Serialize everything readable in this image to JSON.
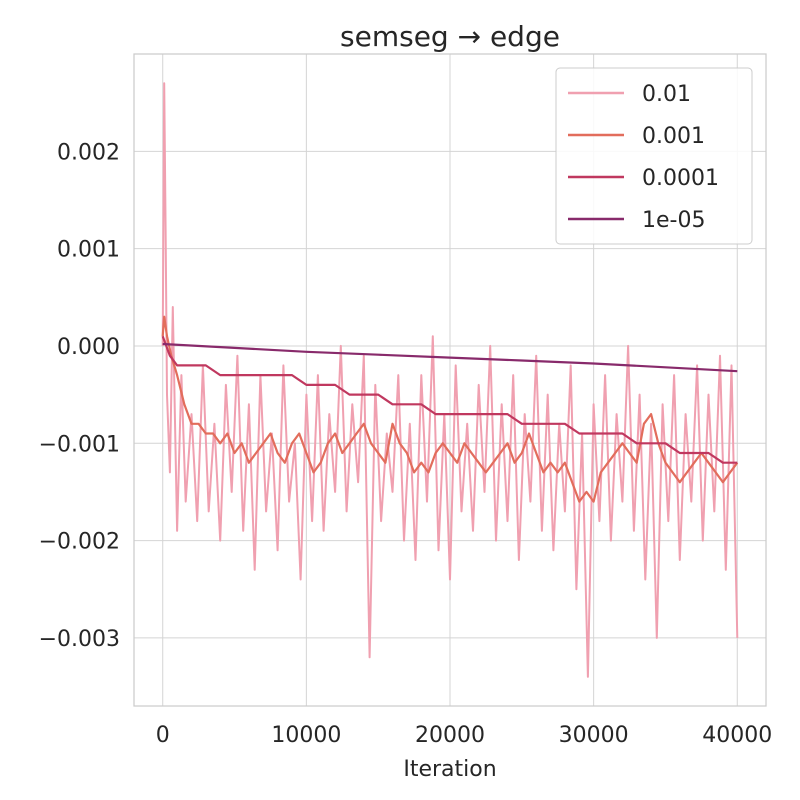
{
  "chart_data": {
    "type": "line",
    "title": "semseg → edge",
    "xlabel": "Iteration",
    "ylabel": "",
    "xlim": [
      -2000,
      42000
    ],
    "ylim": [
      -0.0037,
      0.003
    ],
    "xticks": [
      0,
      10000,
      20000,
      30000,
      40000
    ],
    "xtick_labels": [
      "0",
      "10000",
      "20000",
      "30000",
      "40000"
    ],
    "yticks": [
      0.002,
      0.001,
      0.0,
      -0.001,
      -0.002,
      -0.003
    ],
    "ytick_labels": [
      "0.002",
      "0.001",
      "0.000",
      "−0.001",
      "−0.002",
      "−0.003"
    ],
    "grid": true,
    "legend_position": "top-right",
    "series": [
      {
        "name": "0.01",
        "color": "#f0a0b0",
        "x": [
          0,
          100,
          200,
          300,
          500,
          700,
          1000,
          1300,
          1600,
          2000,
          2400,
          2800,
          3200,
          3600,
          4000,
          4400,
          4800,
          5200,
          5600,
          6000,
          6400,
          6800,
          7200,
          7600,
          8000,
          8400,
          8800,
          9200,
          9600,
          10000,
          10400,
          10800,
          11200,
          11600,
          12000,
          12400,
          12800,
          13200,
          13600,
          14000,
          14400,
          14800,
          15200,
          15600,
          16000,
          16400,
          16800,
          17200,
          17600,
          18000,
          18400,
          18800,
          19200,
          19600,
          20000,
          20400,
          20800,
          21200,
          21600,
          22000,
          22400,
          22800,
          23200,
          23600,
          24000,
          24400,
          24800,
          25200,
          25600,
          26000,
          26400,
          26800,
          27200,
          27600,
          28000,
          28400,
          28800,
          29200,
          29600,
          30000,
          30400,
          30800,
          31200,
          31600,
          32000,
          32400,
          32800,
          33200,
          33600,
          34000,
          34400,
          34800,
          35200,
          35600,
          36000,
          36400,
          36800,
          37200,
          37600,
          38000,
          38400,
          38800,
          39200,
          39600,
          40000
        ],
        "y": [
          0.0,
          0.0027,
          0.0012,
          -0.0005,
          -0.0013,
          0.0004,
          -0.0019,
          -0.0003,
          -0.0016,
          -0.0007,
          -0.0018,
          -0.0002,
          -0.0017,
          -0.0008,
          -0.002,
          -0.0004,
          -0.0015,
          -0.0001,
          -0.0019,
          -0.0006,
          -0.0023,
          -0.0003,
          -0.0017,
          -0.0009,
          -0.0021,
          -0.0002,
          -0.0016,
          -0.001,
          -0.0024,
          -0.0005,
          -0.0018,
          -0.0003,
          -0.0019,
          -0.0007,
          -0.0015,
          0.0,
          -0.0017,
          -0.0006,
          -0.0014,
          -0.0001,
          -0.0032,
          -0.0004,
          -0.0018,
          -0.0009,
          -0.0015,
          -0.0003,
          -0.002,
          -0.0008,
          -0.0022,
          -0.0003,
          -0.0016,
          0.0001,
          -0.0021,
          -0.0007,
          -0.0024,
          -0.0002,
          -0.0017,
          -0.0008,
          -0.0019,
          -0.0004,
          -0.0015,
          0.0,
          -0.002,
          -0.0006,
          -0.0018,
          -0.0003,
          -0.0022,
          -0.0007,
          -0.0016,
          -0.0001,
          -0.0019,
          -0.0005,
          -0.0021,
          -0.0008,
          -0.0017,
          -0.0002,
          -0.0025,
          -0.0009,
          -0.0034,
          -0.0006,
          -0.0018,
          -0.0003,
          -0.002,
          -0.0007,
          -0.0016,
          0.0,
          -0.0019,
          -0.0005,
          -0.0024,
          -0.0008,
          -0.003,
          -0.0006,
          -0.0018,
          -0.0003,
          -0.0022,
          -0.0007,
          -0.0016,
          -0.0002,
          -0.002,
          -0.0005,
          -0.0017,
          -0.0001,
          -0.0023,
          -0.0002,
          -0.003
        ]
      },
      {
        "name": "0.001",
        "color": "#e26d5c",
        "x": [
          0,
          100,
          300,
          600,
          1000,
          1500,
          2000,
          2500,
          3000,
          3500,
          4000,
          4500,
          5000,
          5500,
          6000,
          6500,
          7000,
          7500,
          8000,
          8500,
          9000,
          9500,
          10000,
          10500,
          11000,
          11500,
          12000,
          12500,
          13000,
          13500,
          14000,
          14500,
          15000,
          15500,
          16000,
          16500,
          17000,
          17500,
          18000,
          18500,
          19000,
          19500,
          20000,
          20500,
          21000,
          21500,
          22000,
          22500,
          23000,
          23500,
          24000,
          24500,
          25000,
          25500,
          26000,
          26500,
          27000,
          27500,
          28000,
          28500,
          29000,
          29500,
          30000,
          30500,
          31000,
          31500,
          32000,
          32500,
          33000,
          33500,
          34000,
          34500,
          35000,
          35500,
          36000,
          36500,
          37000,
          37500,
          38000,
          38500,
          39000,
          39500,
          40000
        ],
        "y": [
          0.0001,
          0.0003,
          0.0001,
          -0.0001,
          -0.0003,
          -0.0006,
          -0.0008,
          -0.0008,
          -0.0009,
          -0.0009,
          -0.001,
          -0.0009,
          -0.0011,
          -0.001,
          -0.0012,
          -0.0011,
          -0.001,
          -0.0009,
          -0.0011,
          -0.0012,
          -0.001,
          -0.0009,
          -0.0011,
          -0.0013,
          -0.0012,
          -0.001,
          -0.0009,
          -0.0011,
          -0.001,
          -0.0009,
          -0.0008,
          -0.001,
          -0.0011,
          -0.0012,
          -0.0008,
          -0.001,
          -0.0011,
          -0.0013,
          -0.0012,
          -0.0013,
          -0.0011,
          -0.001,
          -0.0011,
          -0.0012,
          -0.001,
          -0.0011,
          -0.0012,
          -0.0013,
          -0.0012,
          -0.0011,
          -0.001,
          -0.0012,
          -0.0011,
          -0.0009,
          -0.0011,
          -0.0013,
          -0.0012,
          -0.0013,
          -0.0012,
          -0.0014,
          -0.0016,
          -0.0015,
          -0.0016,
          -0.0013,
          -0.0012,
          -0.0011,
          -0.001,
          -0.0011,
          -0.0012,
          -0.0008,
          -0.0007,
          -0.001,
          -0.0012,
          -0.0013,
          -0.0014,
          -0.0013,
          -0.0012,
          -0.0011,
          -0.0012,
          -0.0013,
          -0.0014,
          -0.0013,
          -0.0012
        ]
      },
      {
        "name": "0.0001",
        "color": "#c0385f",
        "x": [
          0,
          500,
          1000,
          2000,
          3000,
          4000,
          5000,
          6000,
          7000,
          8000,
          9000,
          10000,
          11000,
          12000,
          13000,
          14000,
          15000,
          16000,
          17000,
          18000,
          19000,
          20000,
          21000,
          22000,
          23000,
          24000,
          25000,
          26000,
          27000,
          28000,
          29000,
          30000,
          31000,
          32000,
          33000,
          34000,
          35000,
          36000,
          37000,
          38000,
          39000,
          40000
        ],
        "y": [
          0.0001,
          -0.0001,
          -0.0002,
          -0.0002,
          -0.0002,
          -0.0003,
          -0.0003,
          -0.0003,
          -0.0003,
          -0.0003,
          -0.0003,
          -0.0004,
          -0.0004,
          -0.0004,
          -0.0005,
          -0.0005,
          -0.0005,
          -0.0006,
          -0.0006,
          -0.0006,
          -0.0007,
          -0.0007,
          -0.0007,
          -0.0007,
          -0.0007,
          -0.0007,
          -0.0008,
          -0.0008,
          -0.0008,
          -0.0008,
          -0.0009,
          -0.0009,
          -0.0009,
          -0.0009,
          -0.001,
          -0.001,
          -0.001,
          -0.0011,
          -0.0011,
          -0.0011,
          -0.0012,
          -0.0012
        ]
      },
      {
        "name": "1e-05",
        "color": "#882a6b",
        "x": [
          0,
          5000,
          10000,
          15000,
          20000,
          25000,
          30000,
          35000,
          40000
        ],
        "y": [
          2e-05,
          -2e-05,
          -6e-05,
          -9e-05,
          -0.00012,
          -0.00015,
          -0.00018,
          -0.00022,
          -0.00026
        ]
      }
    ]
  }
}
